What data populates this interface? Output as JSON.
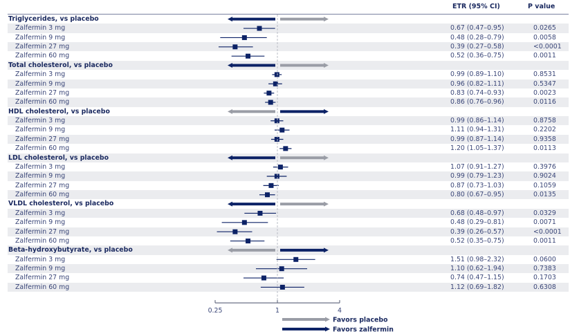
{
  "colors": {
    "navy": "#0c2266",
    "gray_arrow": "#9a9da6",
    "row_shade": "#ebecef",
    "axis": "#6b7185",
    "refline": "#b9bcc6"
  },
  "chart_data": {
    "type": "forest",
    "scale": "log2",
    "xlim": [
      0.25,
      4
    ],
    "reference_value": 1,
    "xticks": [
      {
        "value": 0.25,
        "label": "0.25"
      },
      {
        "value": 1,
        "label": "1"
      },
      {
        "value": 4,
        "label": "4"
      }
    ],
    "columns": {
      "etr": "ETR (95% CI)",
      "p": "P value"
    },
    "legend": [
      {
        "label": "Favors placebo",
        "color": "gray"
      },
      {
        "label": "Favors zalfermin",
        "color": "navy"
      }
    ],
    "groups": [
      {
        "label": "Triglycerides, vs placebo",
        "left_arrow": "navy",
        "right_arrow": "gray",
        "rows": [
          {
            "label": "Zalfermin 3 mg",
            "etr": 0.67,
            "lo": 0.47,
            "hi": 0.95,
            "etr_text": "0.67 (0.47–0.95)",
            "p": "0.0265"
          },
          {
            "label": "Zalfermin 9 mg",
            "etr": 0.48,
            "lo": 0.28,
            "hi": 0.79,
            "etr_text": "0.48 (0.28–0.79)",
            "p": "0.0058"
          },
          {
            "label": "Zalfermin 27 mg",
            "etr": 0.39,
            "lo": 0.27,
            "hi": 0.58,
            "etr_text": "0.39 (0.27–0.58)",
            "p": "<0.0001"
          },
          {
            "label": "Zalfermin 60 mg",
            "etr": 0.52,
            "lo": 0.36,
            "hi": 0.75,
            "etr_text": "0.52 (0.36–0.75)",
            "p": "0.0011"
          }
        ]
      },
      {
        "label": "Total cholesterol, vs placebo",
        "left_arrow": "navy",
        "right_arrow": "gray",
        "rows": [
          {
            "label": "Zalfermin 3 mg",
            "etr": 0.99,
            "lo": 0.89,
            "hi": 1.1,
            "etr_text": "0.99 (0.89–1.10)",
            "p": "0.8531"
          },
          {
            "label": "Zalfermin 9 mg",
            "etr": 0.96,
            "lo": 0.82,
            "hi": 1.11,
            "etr_text": "0.96 (0.82–1.11)",
            "p": "0.5347"
          },
          {
            "label": "Zalfermin 27 mg",
            "etr": 0.83,
            "lo": 0.74,
            "hi": 0.93,
            "etr_text": "0.83 (0.74–0.93)",
            "p": "0.0023"
          },
          {
            "label": "Zalfermin 60 mg",
            "etr": 0.86,
            "lo": 0.76,
            "hi": 0.96,
            "etr_text": "0.86 (0.76–0.96)",
            "p": "0.0116"
          }
        ]
      },
      {
        "label": "HDL cholesterol, vs placebo",
        "left_arrow": "gray",
        "right_arrow": "navy",
        "rows": [
          {
            "label": "Zalfermin 3 mg",
            "etr": 0.99,
            "lo": 0.86,
            "hi": 1.14,
            "etr_text": "0.99 (0.86–1.14)",
            "p": "0.8758"
          },
          {
            "label": "Zalfermin 9 mg",
            "etr": 1.11,
            "lo": 0.94,
            "hi": 1.31,
            "etr_text": "1.11 (0.94–1.31)",
            "p": "0.2202"
          },
          {
            "label": "Zalfermin 27 mg",
            "etr": 0.99,
            "lo": 0.87,
            "hi": 1.14,
            "etr_text": "0.99 (0.87–1.14)",
            "p": "0.9358"
          },
          {
            "label": "Zalfermin 60 mg",
            "etr": 1.2,
            "lo": 1.05,
            "hi": 1.37,
            "etr_text": "1.20 (1.05–1.37)",
            "p": "0.0113"
          }
        ]
      },
      {
        "label": "LDL cholesterol, vs placebo",
        "left_arrow": "navy",
        "right_arrow": "gray",
        "rows": [
          {
            "label": "Zalfermin 3 mg",
            "etr": 1.07,
            "lo": 0.91,
            "hi": 1.27,
            "etr_text": "1.07 (0.91–1.27)",
            "p": "0.3976"
          },
          {
            "label": "Zalfermin 9 mg",
            "etr": 0.99,
            "lo": 0.79,
            "hi": 1.23,
            "etr_text": "0.99 (0.79–1.23)",
            "p": "0.9024"
          },
          {
            "label": "Zalfermin 27 mg",
            "etr": 0.87,
            "lo": 0.73,
            "hi": 1.03,
            "etr_text": "0.87 (0.73–1.03)",
            "p": "0.1059"
          },
          {
            "label": "Zalfermin 60 mg",
            "etr": 0.8,
            "lo": 0.67,
            "hi": 0.95,
            "etr_text": "0.80 (0.67–0.95)",
            "p": "0.0135"
          }
        ]
      },
      {
        "label": "VLDL cholesterol, vs placebo",
        "left_arrow": "navy",
        "right_arrow": "gray",
        "rows": [
          {
            "label": "Zalfermin 3 mg",
            "etr": 0.68,
            "lo": 0.48,
            "hi": 0.97,
            "etr_text": "0.68 (0.48–0.97)",
            "p": "0.0329"
          },
          {
            "label": "Zalfermin 9 mg",
            "etr": 0.48,
            "lo": 0.29,
            "hi": 0.81,
            "etr_text": "0.48 (0.29–0.81)",
            "p": "0.0071"
          },
          {
            "label": "Zalfermin 27 mg",
            "etr": 0.39,
            "lo": 0.26,
            "hi": 0.57,
            "etr_text": "0.39 (0.26–0.57)",
            "p": "<0.0001"
          },
          {
            "label": "Zalfermin 60 mg",
            "etr": 0.52,
            "lo": 0.35,
            "hi": 0.75,
            "etr_text": "0.52 (0.35–0.75)",
            "p": "0.0011"
          }
        ]
      },
      {
        "label": "Beta-hydroxybutyrate, vs placebo",
        "left_arrow": "gray",
        "right_arrow": "navy",
        "rows": [
          {
            "label": "Zalfermin 3 mg",
            "etr": 1.51,
            "lo": 0.98,
            "hi": 2.32,
            "etr_text": "1.51 (0.98–2.32)",
            "p": "0.0600"
          },
          {
            "label": "Zalfermin 9 mg",
            "etr": 1.1,
            "lo": 0.62,
            "hi": 1.94,
            "etr_text": "1.10 (0.62–1.94)",
            "p": "0.7383"
          },
          {
            "label": "Zalfermin 27 mg",
            "etr": 0.74,
            "lo": 0.47,
            "hi": 1.15,
            "etr_text": "0.74 (0.47–1.15)",
            "p": "0.1703"
          },
          {
            "label": "Zalfermin 60 mg",
            "etr": 1.12,
            "lo": 0.69,
            "hi": 1.82,
            "etr_text": "1.12 (0.69–1.82)",
            "p": "0.6308"
          }
        ]
      }
    ]
  }
}
